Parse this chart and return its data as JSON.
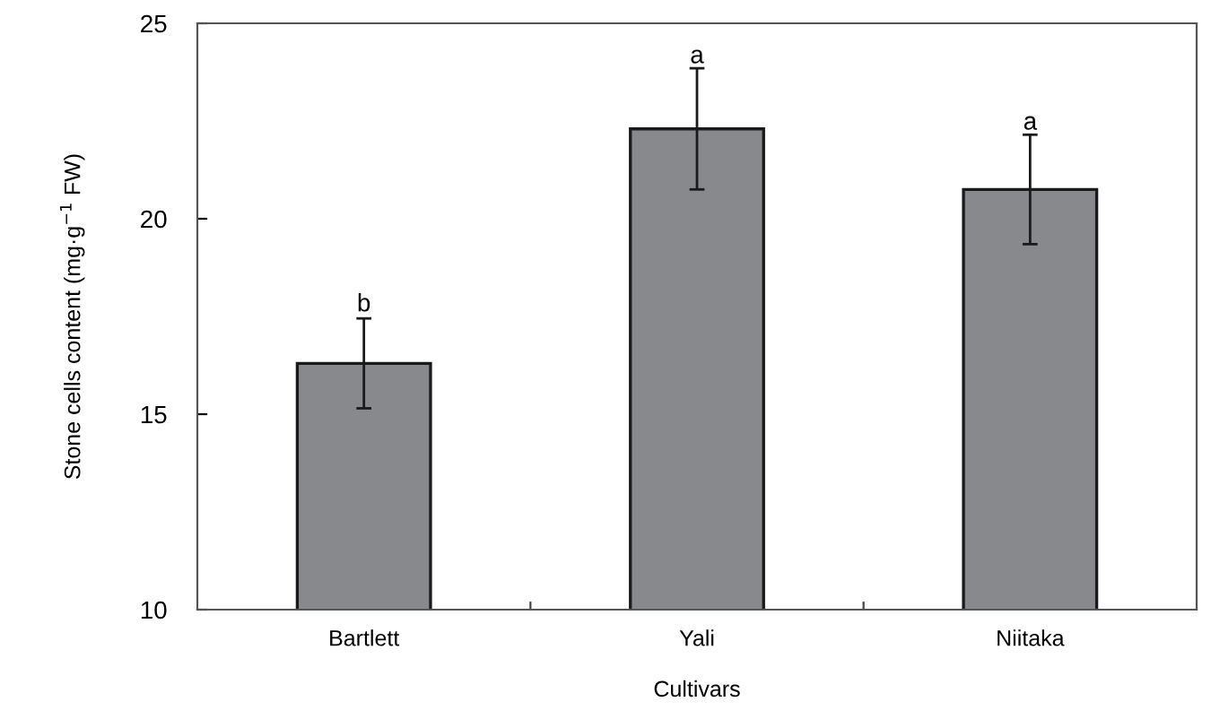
{
  "chart_data": {
    "type": "bar",
    "xlabel": "Cultivars",
    "ylabel": "Stone cells content (mg·g$^{−1}$ FW)",
    "categories": [
      "Bartlett",
      "Yali",
      "Niitaka"
    ],
    "values": [
      16.3,
      22.3,
      20.75
    ],
    "errors": [
      1.15,
      1.55,
      1.4
    ],
    "color": "#88898d",
    "ylim": [
      10,
      25
    ],
    "yticks": [
      10,
      15,
      20,
      25
    ],
    "grid": false,
    "annotations": [
      {
        "text": "b",
        "x": "Bartlett",
        "y": 17.5
      },
      {
        "text": "a",
        "x": "Yali",
        "y": 23.85
      },
      {
        "text": "a",
        "x": "Niitaka",
        "y": 22.15
      }
    ]
  }
}
